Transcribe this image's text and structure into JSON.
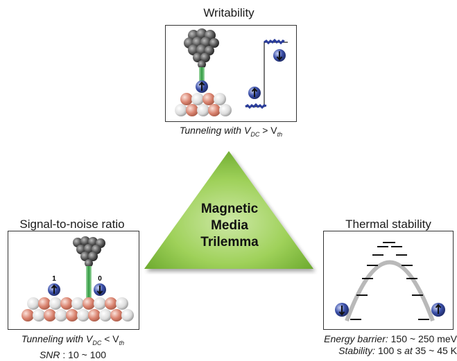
{
  "writability": {
    "title": "Writability",
    "caption_prefix": "Tunneling with V",
    "caption_sub1": "DC",
    "caption_rel": " > V",
    "caption_sub2": "th"
  },
  "center": {
    "line1": "Magnetic",
    "line2": "Media",
    "line3": "Trilemma",
    "fill_color": "#8cc63f"
  },
  "snr": {
    "title": "Signal-to-noise ratio",
    "state_label_1": "1",
    "state_label_0": "0",
    "caption_prefix": "Tunneling with V",
    "caption_sub1": "DC",
    "caption_rel": " < V",
    "caption_sub2": "th",
    "line2_label": "SNR",
    "line2_value": " : 10 ~ 100"
  },
  "thermal": {
    "title": "Thermal stability",
    "energy_label": "Energy barrier:",
    "energy_value": " 150 ~ 250 meV",
    "stability_label": "Stability:",
    "stability_value1": " 100 s ",
    "stability_at": "at",
    "stability_value2": " 35 ~ 45 K"
  },
  "colors": {
    "spin_ball": "#3a4fa8",
    "signal_trace": "#2a3c9a",
    "tip": "#5a5a5a",
    "atom_red": "#d9826e",
    "atom_white": "#e8e8e8",
    "beam": "#3ca04a"
  }
}
